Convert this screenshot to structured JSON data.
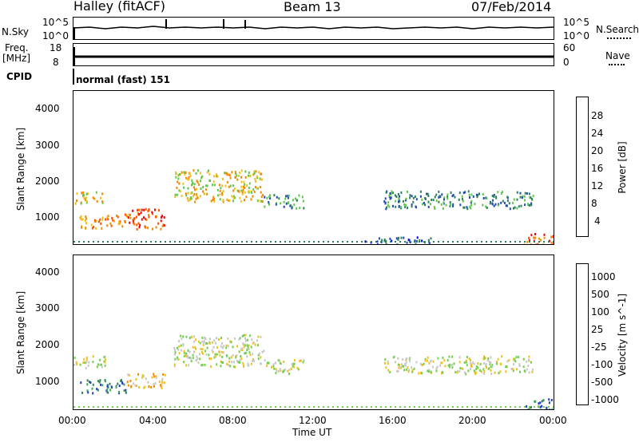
{
  "header": {
    "station": "Halley (fitACF)",
    "beam": "Beam 13",
    "date": "07/Feb/2014"
  },
  "strips": {
    "nsky_label": "N.Sky",
    "nsky_ticks": [
      "10^5",
      "10^0"
    ],
    "nsearch_label": "N.Search",
    "nsearch_ticks": [
      "10^5",
      "10^0"
    ],
    "freq_label": "Freq.",
    "freq_unit": "[MHz]",
    "freq_ticks": [
      "18",
      "8"
    ],
    "nave_label": "Nave",
    "nave_ticks": [
      "60",
      "0"
    ],
    "cpid_label": "CPID",
    "cpid_text": "normal (fast) 151"
  },
  "chart_data": [
    {
      "type": "heatmap",
      "name": "power",
      "ylabel": "Slant Range [km]",
      "y_ticks": [
        "4000",
        "3000",
        "2000",
        "1000"
      ],
      "ylim": [
        180,
        4500
      ],
      "xlim": [
        0,
        24
      ],
      "colorbar_label": "Power [dB]",
      "colorbar_ticks": [
        "28",
        "24",
        "20",
        "16",
        "12",
        "8",
        "4"
      ],
      "colorbar_colors": [
        "#0000ff",
        "#1e4bb4",
        "#2f7f5f",
        "#5fc74a",
        "#f0c020",
        "#f08a00",
        "#ff5000",
        "#ff0000"
      ],
      "echo_bands": [
        {
          "t0": 0.0,
          "t1": 1.6,
          "r0": 1350,
          "r1": 1700,
          "level": 4
        },
        {
          "t0": 0.3,
          "t1": 2.6,
          "r0": 650,
          "r1": 1050,
          "level": 5
        },
        {
          "t0": 2.6,
          "t1": 4.6,
          "r0": 620,
          "r1": 1200,
          "level": 6
        },
        {
          "t0": 5.0,
          "t1": 9.5,
          "r0": 1400,
          "r1": 2300,
          "level": 4
        },
        {
          "t0": 9.5,
          "t1": 11.5,
          "r0": 1200,
          "r1": 1600,
          "level": 2
        },
        {
          "t0": 15.5,
          "t1": 23.0,
          "r0": 1200,
          "r1": 1700,
          "level": 2
        },
        {
          "t0": 22.5,
          "t1": 24.0,
          "r0": 180,
          "r1": 500,
          "level": 6
        },
        {
          "t0": 14.5,
          "t1": 18.0,
          "r0": 200,
          "r1": 400,
          "level": 1
        }
      ]
    },
    {
      "type": "heatmap",
      "name": "velocity",
      "ylabel": "Slant Range [km]",
      "y_ticks": [
        "4000",
        "3000",
        "2000",
        "1000"
      ],
      "ylim": [
        180,
        4500
      ],
      "xlim": [
        0,
        24
      ],
      "x_ticks": [
        "00:00",
        "04:00",
        "08:00",
        "12:00",
        "16:00",
        "20:00",
        "00:00"
      ],
      "xlabel": "Time UT",
      "colorbar_label": "Velocity [m s^-1]",
      "colorbar_ticks": [
        "1000",
        "500",
        "100",
        "25",
        "-25",
        "-100",
        "-500",
        "-1000"
      ],
      "colorbar_colors": [
        "#2040c0",
        "#2f7f5f",
        "#3fa65a",
        "#6fd04a",
        "#c8c8c8",
        "#f0c020",
        "#f08a00",
        "#ff5000",
        "#ff0000"
      ],
      "echo_bands": [
        {
          "t0": 0.0,
          "t1": 1.6,
          "r0": 1350,
          "r1": 1700,
          "level": 4
        },
        {
          "t0": 0.3,
          "t1": 2.6,
          "r0": 650,
          "r1": 1050,
          "level": 1
        },
        {
          "t0": 2.6,
          "t1": 4.6,
          "r0": 800,
          "r1": 1200,
          "level": 5
        },
        {
          "t0": 5.0,
          "t1": 9.5,
          "r0": 1400,
          "r1": 2300,
          "level": 4
        },
        {
          "t0": 9.5,
          "t1": 11.5,
          "r0": 1200,
          "r1": 1600,
          "level": 4
        },
        {
          "t0": 15.5,
          "t1": 23.0,
          "r0": 1200,
          "r1": 1700,
          "level": 4
        },
        {
          "t0": 22.5,
          "t1": 24.0,
          "r0": 180,
          "r1": 500,
          "level": 1
        }
      ]
    }
  ]
}
